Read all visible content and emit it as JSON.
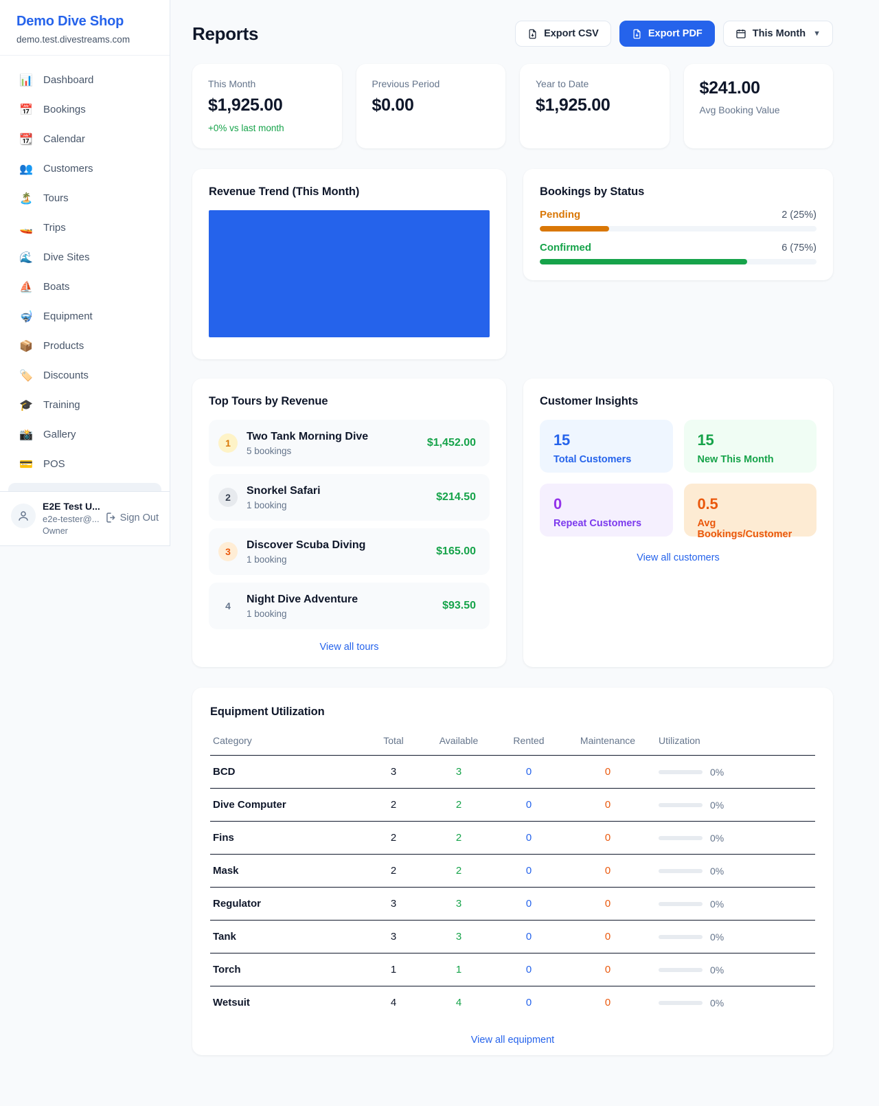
{
  "colors": {
    "accent_blue": "#2563eb",
    "green": "#16a34a",
    "orange_pending": "#d97706",
    "orange_deep": "#ea580c",
    "purple": "#9333ea",
    "chart_bar": "#2563eb",
    "page_bg": "#f8fafc"
  },
  "sidebar": {
    "brand": {
      "name": "Demo Dive Shop",
      "domain": "demo.test.divestreams.com"
    },
    "nav": [
      {
        "icon": "📊",
        "label": "Dashboard"
      },
      {
        "icon": "📅",
        "label": "Bookings"
      },
      {
        "icon": "📆",
        "label": "Calendar"
      },
      {
        "icon": "👥",
        "label": "Customers"
      },
      {
        "icon": "🏝️",
        "label": "Tours"
      },
      {
        "icon": "🚤",
        "label": "Trips"
      },
      {
        "icon": "🌊",
        "label": "Dive Sites"
      },
      {
        "icon": "⛵",
        "label": "Boats"
      },
      {
        "icon": "🤿",
        "label": "Equipment"
      },
      {
        "icon": "📦",
        "label": "Products"
      },
      {
        "icon": "🏷️",
        "label": "Discounts"
      },
      {
        "icon": "🎓",
        "label": "Training"
      },
      {
        "icon": "📸",
        "label": "Gallery"
      },
      {
        "icon": "💳",
        "label": "POS"
      }
    ],
    "user": {
      "name": "E2E Test U...",
      "email": "e2e-tester@...",
      "role": "Owner",
      "sign_out": "Sign Out"
    }
  },
  "header": {
    "title": "Reports",
    "export_csv": "Export CSV",
    "export_pdf": "Export PDF",
    "period": "This Month"
  },
  "stats": [
    {
      "label": "This Month",
      "value": "$1,925.00",
      "delta": "+0% vs last month"
    },
    {
      "label": "Previous Period",
      "value": "$0.00"
    },
    {
      "label": "Year to Date",
      "value": "$1,925.00"
    },
    {
      "label": "Avg Booking Value",
      "value": "$241.00"
    }
  ],
  "revenue_trend": {
    "title": "Revenue Trend (This Month)",
    "bar_color": "#2563eb"
  },
  "chart_data": {
    "type": "bar",
    "title": "Revenue Trend (This Month)",
    "note": "single solid bar filling entire plot area, no axis labels visible",
    "color": "#2563eb"
  },
  "bookings_by_status": {
    "title": "Bookings by Status",
    "rows": [
      {
        "label": "Pending",
        "value": "2 (25%)",
        "pct": 25
      },
      {
        "label": "Confirmed",
        "value": "6 (75%)",
        "pct": 75
      }
    ]
  },
  "top_tours": {
    "title": "Top Tours by Revenue",
    "items": [
      {
        "rank": "1",
        "name": "Two Tank Morning Dive",
        "bookings": "5 bookings",
        "revenue": "$1,452.00"
      },
      {
        "rank": "2",
        "name": "Snorkel Safari",
        "bookings": "1 booking",
        "revenue": "$214.50"
      },
      {
        "rank": "3",
        "name": "Discover Scuba Diving",
        "bookings": "1 booking",
        "revenue": "$165.00"
      },
      {
        "rank": "4",
        "name": "Night Dive Adventure",
        "bookings": "1 booking",
        "revenue": "$93.50"
      }
    ],
    "view_all": "View all tours"
  },
  "customer_insights": {
    "title": "Customer Insights",
    "tiles": [
      {
        "value": "15",
        "label": "Total Customers"
      },
      {
        "value": "15",
        "label": "New This Month"
      },
      {
        "value": "0",
        "label": "Repeat Customers"
      },
      {
        "value": "0.5",
        "label": "Avg Bookings/Customer"
      }
    ],
    "view_all": "View all customers"
  },
  "equipment": {
    "title": "Equipment Utilization",
    "columns": [
      "Category",
      "Total",
      "Available",
      "Rented",
      "Maintenance",
      "Utilization"
    ],
    "rows": [
      {
        "category": "BCD",
        "total": "3",
        "available": "3",
        "rented": "0",
        "maintenance": "0",
        "utilization": "0%",
        "util_pct": 0
      },
      {
        "category": "Dive Computer",
        "total": "2",
        "available": "2",
        "rented": "0",
        "maintenance": "0",
        "utilization": "0%",
        "util_pct": 0
      },
      {
        "category": "Fins",
        "total": "2",
        "available": "2",
        "rented": "0",
        "maintenance": "0",
        "utilization": "0%",
        "util_pct": 0
      },
      {
        "category": "Mask",
        "total": "2",
        "available": "2",
        "rented": "0",
        "maintenance": "0",
        "utilization": "0%",
        "util_pct": 0
      },
      {
        "category": "Regulator",
        "total": "3",
        "available": "3",
        "rented": "0",
        "maintenance": "0",
        "utilization": "0%",
        "util_pct": 0
      },
      {
        "category": "Tank",
        "total": "3",
        "available": "3",
        "rented": "0",
        "maintenance": "0",
        "utilization": "0%",
        "util_pct": 0
      },
      {
        "category": "Torch",
        "total": "1",
        "available": "1",
        "rented": "0",
        "maintenance": "0",
        "utilization": "0%",
        "util_pct": 0
      },
      {
        "category": "Wetsuit",
        "total": "4",
        "available": "4",
        "rented": "0",
        "maintenance": "0",
        "utilization": "0%",
        "util_pct": 0
      }
    ],
    "view_all": "View all equipment"
  }
}
